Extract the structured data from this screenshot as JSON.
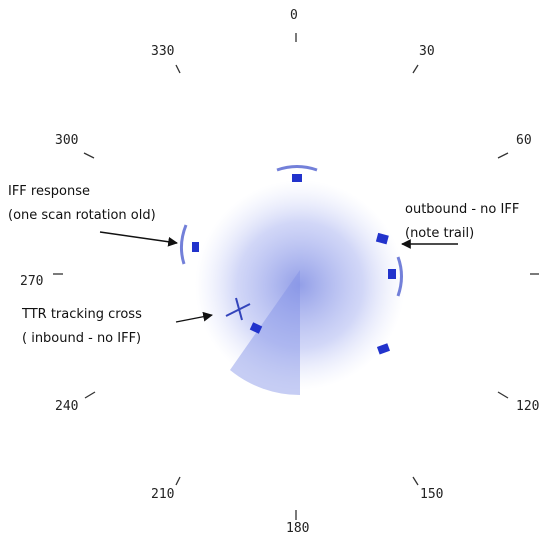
{
  "bearings": {
    "b0": "0",
    "b30": "30",
    "b60": "60",
    "b120": "120",
    "b150": "150",
    "b180": "180",
    "b210": "210",
    "b240": "240",
    "b270": "270",
    "b300": "300",
    "b330": "330"
  },
  "annotations": {
    "iff_response": "IFF response",
    "iff_note": "(one scan rotation old)",
    "outbound": "outbound - no IFF",
    "outbound_note": "(note trail)",
    "ttr": "TTR tracking cross",
    "inbound": "(   inbound - no IFF)"
  }
}
